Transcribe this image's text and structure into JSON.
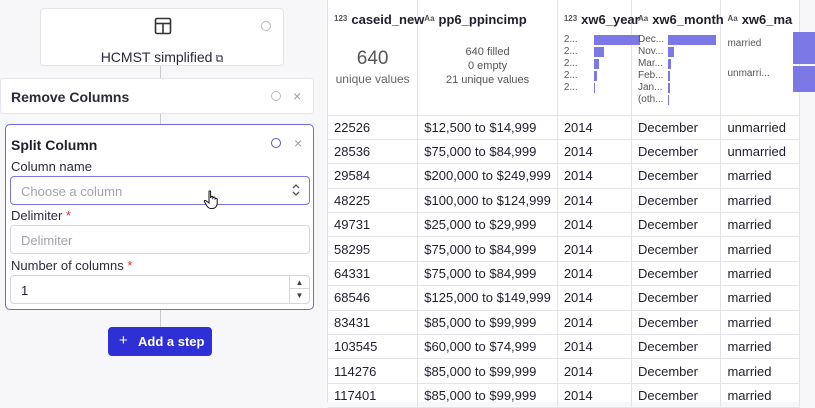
{
  "pipeline": {
    "source": {
      "title": "HCMST simplified",
      "icon": "table-icon",
      "external_icon": "external-link-icon"
    },
    "steps": [
      {
        "title": "Remove Columns"
      },
      {
        "title": "Split Column",
        "column_label": "Column name",
        "column_placeholder": "Choose a column",
        "delimiter_label": "Delimiter",
        "delimiter_placeholder": "Delimiter",
        "ncols_label": "Number of columns",
        "ncols_value": "1",
        "required_mark": "*"
      }
    ],
    "add_step_label": "Add a step"
  },
  "table": {
    "columns": [
      {
        "name": "caseid_new",
        "type_icon": "123",
        "summary_big": "640",
        "summary_sub": "unique values"
      },
      {
        "name": "pp6_ppincimp",
        "type_icon": "Aa",
        "summary_lines": [
          "640 filled",
          "0 empty",
          "21 unique values"
        ]
      },
      {
        "name": "xw6_year",
        "type_icon": "123",
        "dist_labels": [
          "2...",
          "2...",
          "2...",
          "2...",
          "2..."
        ],
        "dist_fracs": [
          1.0,
          0.22,
          0.12,
          0.06,
          0.03
        ]
      },
      {
        "name": "xw6_month",
        "type_icon": "Aa",
        "dist_labels": [
          "Dec...",
          "Nov...",
          "Mar...",
          "Feb...",
          "Jan...",
          "(oth..."
        ],
        "dist_fracs": [
          1.0,
          0.12,
          0.06,
          0.05,
          0.04,
          0.03
        ]
      },
      {
        "name": "xw6_ma",
        "type_icon": "Aa",
        "cat_labels": [
          "married",
          "unmarri..."
        ],
        "cat_fracs": [
          0.55,
          0.45
        ]
      }
    ],
    "rows": [
      [
        "22526",
        "$12,500 to $14,999",
        "2014",
        "December",
        "unmarried"
      ],
      [
        "28536",
        "$75,000 to $84,999",
        "2014",
        "December",
        "unmarried"
      ],
      [
        "29584",
        "$200,000 to $249,999",
        "2014",
        "December",
        "married"
      ],
      [
        "48225",
        "$100,000 to $124,999",
        "2014",
        "December",
        "married"
      ],
      [
        "49731",
        "$25,000 to $29,999",
        "2014",
        "December",
        "married"
      ],
      [
        "58295",
        "$75,000 to $84,999",
        "2014",
        "December",
        "married"
      ],
      [
        "64331",
        "$75,000 to $84,999",
        "2014",
        "December",
        "married"
      ],
      [
        "68546",
        "$125,000 to $149,999",
        "2014",
        "December",
        "married"
      ],
      [
        "83431",
        "$85,000 to $99,999",
        "2014",
        "December",
        "married"
      ],
      [
        "103545",
        "$60,000 to $74,999",
        "2014",
        "December",
        "married"
      ],
      [
        "114276",
        "$85,000 to $99,999",
        "2014",
        "December",
        "married"
      ],
      [
        "117401",
        "$85,000 to $99,999",
        "2014",
        "December",
        "married"
      ]
    ]
  },
  "colors": {
    "accent": "#2f2fd6",
    "bar": "#7c79e6",
    "required": "#d6303a",
    "focus_border": "#6b6ae0"
  }
}
